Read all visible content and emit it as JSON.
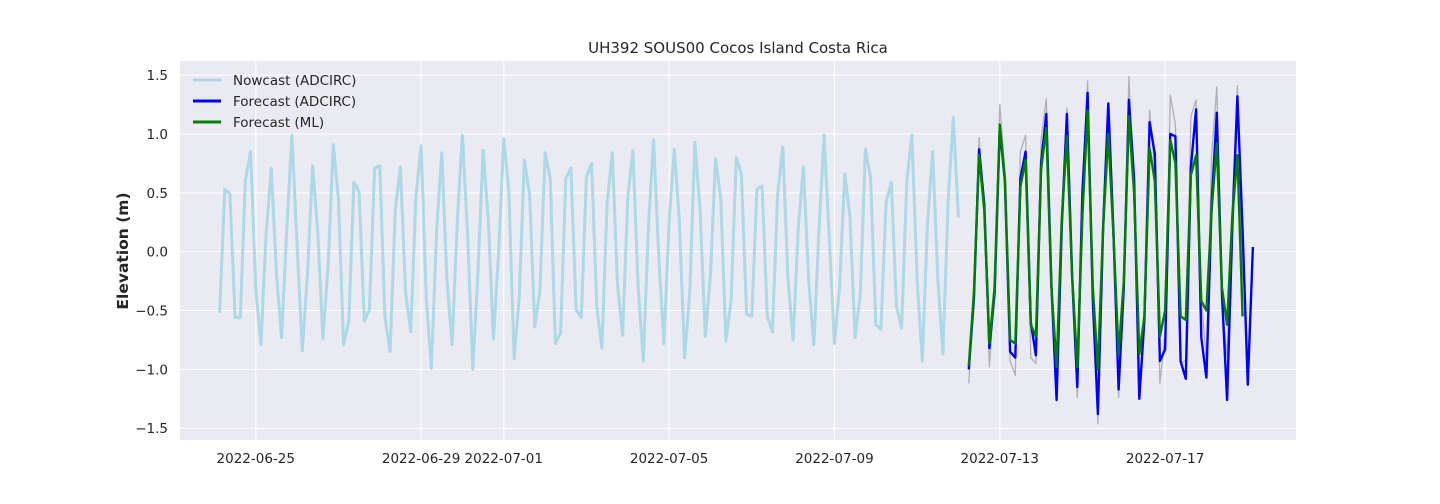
{
  "chart_data": {
    "type": "line",
    "title": "UH392 SOUS00 Cocos Island Costa Rica",
    "xlabel": "",
    "ylabel": "Elevation (m)",
    "grid": true,
    "legend_placement": "top-left",
    "xlim": [
      "2022-06-23T04:00",
      "2022-07-20T04:00"
    ],
    "ylim": [
      -1.6,
      1.62
    ],
    "x_ticks": [
      "2022-06-25",
      "2022-06-29",
      "2022-07-01",
      "2022-07-05",
      "2022-07-09",
      "2022-07-13",
      "2022-07-17"
    ],
    "y_ticks": [
      -1.5,
      -1.0,
      -0.5,
      0.0,
      0.5,
      1.0,
      1.5
    ],
    "y_tick_labels": [
      "−1.5",
      "−1.0",
      "−0.5",
      "0.0",
      "0.5",
      "1.0",
      "1.5"
    ],
    "colors": {
      "plot_background": "#eaeaf2",
      "grid": "#ffffff",
      "nowcast": "#add8e6",
      "forecast_adcirc": "#0000ff",
      "forecast_ml": "#008000",
      "observed_reference": "#b0b0b0"
    },
    "series": [
      {
        "name": "Nowcast (ADCIRC)",
        "color": "#add8e6",
        "x": [
          "2022-06-24T03:00",
          "2022-06-24T06:00",
          "2022-06-24T09:00",
          "2022-06-24T12:00",
          "2022-06-24T15:00",
          "2022-06-24T18:00",
          "2022-06-24T21:00",
          "2022-06-25T00:00",
          "2022-06-25T03:00",
          "2022-06-25T06:00",
          "2022-06-25T09:00",
          "2022-06-25T12:00",
          "2022-06-25T15:00",
          "2022-06-25T18:00",
          "2022-06-25T21:00",
          "2022-06-26T00:00",
          "2022-06-26T03:00",
          "2022-06-26T06:00",
          "2022-06-26T09:00",
          "2022-06-26T12:00",
          "2022-06-26T15:00",
          "2022-06-26T18:00",
          "2022-06-26T21:00",
          "2022-06-27T00:00",
          "2022-06-27T03:00",
          "2022-06-27T06:00",
          "2022-06-27T09:00",
          "2022-06-27T12:00",
          "2022-06-27T15:00",
          "2022-06-27T18:00",
          "2022-06-27T21:00",
          "2022-06-28T00:00",
          "2022-06-28T03:00",
          "2022-06-28T06:00",
          "2022-06-28T09:00",
          "2022-06-28T12:00",
          "2022-06-28T15:00",
          "2022-06-28T18:00",
          "2022-06-28T21:00",
          "2022-06-29T00:00",
          "2022-06-29T03:00",
          "2022-06-29T06:00",
          "2022-06-29T09:00",
          "2022-06-29T12:00",
          "2022-06-29T15:00",
          "2022-06-29T18:00",
          "2022-06-29T21:00",
          "2022-06-30T00:00",
          "2022-06-30T03:00",
          "2022-06-30T06:00",
          "2022-06-30T09:00",
          "2022-06-30T12:00",
          "2022-06-30T15:00",
          "2022-06-30T18:00",
          "2022-06-30T21:00",
          "2022-07-01T00:00",
          "2022-07-01T03:00",
          "2022-07-01T06:00",
          "2022-07-01T09:00",
          "2022-07-01T12:00",
          "2022-07-01T15:00",
          "2022-07-01T18:00",
          "2022-07-01T21:00",
          "2022-07-02T00:00",
          "2022-07-02T03:00",
          "2022-07-02T06:00",
          "2022-07-02T09:00",
          "2022-07-02T12:00",
          "2022-07-02T15:00",
          "2022-07-02T18:00",
          "2022-07-02T21:00",
          "2022-07-03T00:00",
          "2022-07-03T03:00",
          "2022-07-03T06:00",
          "2022-07-03T09:00",
          "2022-07-03T12:00",
          "2022-07-03T15:00",
          "2022-07-03T18:00",
          "2022-07-03T21:00",
          "2022-07-04T00:00",
          "2022-07-04T03:00",
          "2022-07-04T06:00",
          "2022-07-04T09:00",
          "2022-07-04T12:00",
          "2022-07-04T15:00",
          "2022-07-04T18:00",
          "2022-07-04T21:00",
          "2022-07-05T00:00",
          "2022-07-05T03:00",
          "2022-07-05T06:00",
          "2022-07-05T09:00",
          "2022-07-05T12:00",
          "2022-07-05T15:00",
          "2022-07-05T18:00",
          "2022-07-05T21:00",
          "2022-07-06T00:00",
          "2022-07-06T03:00",
          "2022-07-06T06:00",
          "2022-07-06T09:00",
          "2022-07-06T12:00",
          "2022-07-06T15:00",
          "2022-07-06T18:00",
          "2022-07-06T21:00",
          "2022-07-07T00:00",
          "2022-07-07T03:00",
          "2022-07-07T06:00",
          "2022-07-07T09:00",
          "2022-07-07T12:00",
          "2022-07-07T15:00",
          "2022-07-07T18:00",
          "2022-07-07T21:00",
          "2022-07-08T00:00",
          "2022-07-08T03:00",
          "2022-07-08T06:00",
          "2022-07-08T09:00",
          "2022-07-08T12:00",
          "2022-07-08T15:00",
          "2022-07-08T18:00",
          "2022-07-08T21:00",
          "2022-07-09T00:00",
          "2022-07-09T03:00",
          "2022-07-09T06:00",
          "2022-07-09T09:00",
          "2022-07-09T12:00",
          "2022-07-09T15:00",
          "2022-07-09T18:00",
          "2022-07-09T21:00",
          "2022-07-10T00:00",
          "2022-07-10T03:00",
          "2022-07-10T06:00",
          "2022-07-10T09:00",
          "2022-07-10T12:00",
          "2022-07-10T15:00",
          "2022-07-10T18:00",
          "2022-07-10T21:00",
          "2022-07-11T00:00",
          "2022-07-11T03:00",
          "2022-07-11T06:00",
          "2022-07-11T09:00",
          "2022-07-11T12:00",
          "2022-07-11T15:00",
          "2022-07-11T18:00",
          "2022-07-11T21:00",
          "2022-07-12T00:00"
        ],
        "values": [
          -0.52,
          0.53,
          0.49,
          -0.56,
          -0.56,
          0.61,
          0.85,
          -0.32,
          -0.79,
          0.15,
          0.71,
          -0.18,
          -0.73,
          0.2,
          0.99,
          0.05,
          -0.84,
          -0.2,
          0.73,
          0.16,
          -0.74,
          -0.12,
          0.91,
          0.45,
          -0.79,
          -0.59,
          0.59,
          0.51,
          -0.59,
          -0.49,
          0.71,
          0.73,
          -0.55,
          -0.85,
          0.36,
          0.72,
          -0.35,
          -0.68,
          0.47,
          0.9,
          -0.4,
          -0.99,
          0.18,
          0.84,
          -0.24,
          -0.79,
          0.26,
          0.99,
          0.15,
          -1.0,
          -0.18,
          0.86,
          0.27,
          -0.74,
          -0.01,
          0.96,
          0.51,
          -0.91,
          -0.38,
          0.78,
          0.49,
          -0.64,
          -0.33,
          0.84,
          0.62,
          -0.78,
          -0.69,
          0.62,
          0.71,
          -0.49,
          -0.56,
          0.63,
          0.75,
          -0.47,
          -0.82,
          0.41,
          0.84,
          -0.27,
          -0.71,
          0.46,
          0.86,
          -0.29,
          -0.93,
          0.21,
          0.95,
          -0.05,
          -0.78,
          0.25,
          0.87,
          0.26,
          -0.9,
          -0.34,
          0.93,
          0.35,
          -0.72,
          -0.2,
          0.79,
          0.45,
          -0.76,
          -0.41,
          0.8,
          0.66,
          -0.53,
          -0.55,
          0.53,
          0.56,
          -0.55,
          -0.68,
          0.48,
          0.89,
          -0.22,
          -0.75,
          0.2,
          0.72,
          -0.23,
          -0.79,
          0.17,
          0.99,
          0.11,
          -0.78,
          -0.3,
          0.66,
          0.3,
          -0.73,
          -0.36,
          0.87,
          0.63,
          -0.62,
          -0.66,
          0.42,
          0.59,
          -0.46,
          -0.65,
          0.6,
          0.99,
          -0.23,
          -0.93,
          0.23,
          0.85,
          -0.22,
          -0.87,
          0.42,
          1.14,
          0.29
        ]
      },
      {
        "name": "Forecast (ADCIRC)",
        "color": "#0000ff",
        "x": [
          "2022-07-12T06:00",
          "2022-07-12T09:00",
          "2022-07-12T12:00",
          "2022-07-12T15:00",
          "2022-07-12T18:00",
          "2022-07-12T21:00",
          "2022-07-13T00:00",
          "2022-07-13T03:00",
          "2022-07-13T06:00",
          "2022-07-13T09:00",
          "2022-07-13T12:00",
          "2022-07-13T15:00",
          "2022-07-13T18:00",
          "2022-07-13T21:00",
          "2022-07-14T00:00",
          "2022-07-14T03:00",
          "2022-07-14T06:00",
          "2022-07-14T09:00",
          "2022-07-14T12:00",
          "2022-07-14T15:00",
          "2022-07-14T18:00",
          "2022-07-14T21:00",
          "2022-07-15T00:00",
          "2022-07-15T03:00",
          "2022-07-15T06:00",
          "2022-07-15T09:00",
          "2022-07-15T12:00",
          "2022-07-15T15:00",
          "2022-07-15T18:00",
          "2022-07-15T21:00",
          "2022-07-16T00:00",
          "2022-07-16T03:00",
          "2022-07-16T06:00",
          "2022-07-16T09:00",
          "2022-07-16T12:00",
          "2022-07-16T15:00",
          "2022-07-16T18:00",
          "2022-07-16T21:00",
          "2022-07-17T00:00",
          "2022-07-17T03:00",
          "2022-07-17T06:00",
          "2022-07-17T09:00",
          "2022-07-17T12:00",
          "2022-07-17T15:00",
          "2022-07-17T18:00",
          "2022-07-17T21:00",
          "2022-07-18T00:00",
          "2022-07-18T03:00",
          "2022-07-18T06:00",
          "2022-07-18T09:00",
          "2022-07-18T12:00",
          "2022-07-18T15:00",
          "2022-07-18T18:00",
          "2022-07-18T21:00",
          "2022-07-19T00:00",
          "2022-07-19T03:00"
        ],
        "values": [
          -1.0,
          -0.4,
          0.87,
          0.4,
          -0.82,
          -0.35,
          1.05,
          0.6,
          -0.85,
          -0.9,
          0.62,
          0.85,
          -0.6,
          -0.88,
          0.75,
          1.17,
          -0.28,
          -1.26,
          0.22,
          1.17,
          -0.2,
          -1.15,
          0.5,
          1.35,
          -0.41,
          -1.38,
          0.2,
          1.26,
          0.18,
          -1.17,
          -0.3,
          1.29,
          0.62,
          -1.25,
          -0.58,
          1.1,
          0.83,
          -0.93,
          -0.83,
          1.0,
          0.98,
          -0.93,
          -1.08,
          0.72,
          1.21,
          -0.73,
          -1.07,
          0.4,
          1.18,
          -0.35,
          -1.26,
          0.2,
          1.32,
          0.18,
          -1.13,
          0.04
        ]
      },
      {
        "name": "Forecast (ML)",
        "color": "#008000",
        "x": [
          "2022-07-12T06:00",
          "2022-07-12T09:00",
          "2022-07-12T12:00",
          "2022-07-12T15:00",
          "2022-07-12T18:00",
          "2022-07-12T21:00",
          "2022-07-13T00:00",
          "2022-07-13T03:00",
          "2022-07-13T06:00",
          "2022-07-13T09:00",
          "2022-07-13T12:00",
          "2022-07-13T15:00",
          "2022-07-13T18:00",
          "2022-07-13T21:00",
          "2022-07-14T00:00",
          "2022-07-14T03:00",
          "2022-07-14T06:00",
          "2022-07-14T09:00",
          "2022-07-14T12:00",
          "2022-07-14T15:00",
          "2022-07-14T18:00",
          "2022-07-14T21:00",
          "2022-07-15T00:00",
          "2022-07-15T03:00",
          "2022-07-15T06:00",
          "2022-07-15T09:00",
          "2022-07-15T12:00",
          "2022-07-15T15:00",
          "2022-07-15T18:00",
          "2022-07-15T21:00",
          "2022-07-16T00:00",
          "2022-07-16T03:00",
          "2022-07-16T06:00",
          "2022-07-16T09:00",
          "2022-07-16T12:00",
          "2022-07-16T15:00",
          "2022-07-16T18:00",
          "2022-07-16T21:00",
          "2022-07-17T00:00",
          "2022-07-17T03:00",
          "2022-07-17T06:00",
          "2022-07-17T09:00",
          "2022-07-17T12:00",
          "2022-07-17T15:00",
          "2022-07-17T18:00",
          "2022-07-17T21:00",
          "2022-07-18T00:00",
          "2022-07-18T03:00",
          "2022-07-18T06:00",
          "2022-07-18T09:00",
          "2022-07-18T12:00",
          "2022-07-18T15:00",
          "2022-07-18T18:00",
          "2022-07-18T21:00"
        ],
        "values": [
          -0.97,
          -0.35,
          0.82,
          0.35,
          -0.78,
          -0.3,
          1.08,
          0.62,
          -0.75,
          -0.78,
          0.55,
          0.78,
          -0.62,
          -0.72,
          0.7,
          1.05,
          -0.3,
          -0.98,
          0.28,
          0.98,
          -0.2,
          -0.98,
          0.3,
          1.2,
          -0.3,
          -1.0,
          0.2,
          1.0,
          0.15,
          -0.87,
          -0.25,
          1.15,
          0.5,
          -0.87,
          -0.55,
          0.88,
          0.6,
          -0.72,
          -0.5,
          0.95,
          0.75,
          -0.55,
          -0.58,
          0.65,
          0.82,
          -0.42,
          -0.5,
          0.35,
          0.92,
          -0.3,
          -0.62,
          0.3,
          0.82,
          -0.55
        ]
      },
      {
        "color": "#b0b0b0",
        "x": [
          "2022-07-12T06:00",
          "2022-07-12T09:00",
          "2022-07-12T12:00",
          "2022-07-12T15:00",
          "2022-07-12T18:00",
          "2022-07-12T21:00",
          "2022-07-13T00:00",
          "2022-07-13T03:00",
          "2022-07-13T06:00",
          "2022-07-13T09:00",
          "2022-07-13T12:00",
          "2022-07-13T15:00",
          "2022-07-13T18:00",
          "2022-07-13T21:00",
          "2022-07-14T00:00",
          "2022-07-14T03:00",
          "2022-07-14T06:00",
          "2022-07-14T09:00",
          "2022-07-14T12:00",
          "2022-07-14T15:00",
          "2022-07-14T18:00",
          "2022-07-14T21:00",
          "2022-07-15T00:00",
          "2022-07-15T03:00",
          "2022-07-15T06:00",
          "2022-07-15T09:00",
          "2022-07-15T12:00",
          "2022-07-15T15:00",
          "2022-07-15T18:00",
          "2022-07-15T21:00",
          "2022-07-16T00:00",
          "2022-07-16T03:00",
          "2022-07-16T06:00",
          "2022-07-16T09:00",
          "2022-07-16T12:00",
          "2022-07-16T15:00",
          "2022-07-16T18:00",
          "2022-07-16T21:00",
          "2022-07-17T00:00",
          "2022-07-17T03:00",
          "2022-07-17T06:00",
          "2022-07-17T09:00",
          "2022-07-17T12:00",
          "2022-07-17T15:00",
          "2022-07-17T18:00",
          "2022-07-17T21:00",
          "2022-07-18T00:00",
          "2022-07-18T03:00",
          "2022-07-18T06:00",
          "2022-07-18T09:00",
          "2022-07-18T12:00",
          "2022-07-18T15:00",
          "2022-07-18T18:00",
          "2022-07-18T21:00"
        ],
        "values": [
          -1.12,
          -0.3,
          0.97,
          0.3,
          -0.98,
          -0.3,
          1.25,
          0.68,
          -0.93,
          -1.05,
          0.85,
          0.99,
          -0.9,
          -0.95,
          0.95,
          1.3,
          -0.35,
          -1.2,
          0.35,
          1.22,
          -0.25,
          -1.24,
          0.55,
          1.45,
          -0.4,
          -1.46,
          0.3,
          1.2,
          0.12,
          -1.24,
          -0.35,
          1.49,
          0.4,
          -1.2,
          -0.62,
          1.2,
          0.7,
          -1.12,
          -0.7,
          1.33,
          1.08,
          -0.95,
          -0.92,
          1.15,
          1.29,
          -0.4,
          -0.92,
          0.82,
          1.4,
          -0.42,
          -0.89,
          0.4,
          1.41,
          -0.25
        ]
      }
    ]
  }
}
